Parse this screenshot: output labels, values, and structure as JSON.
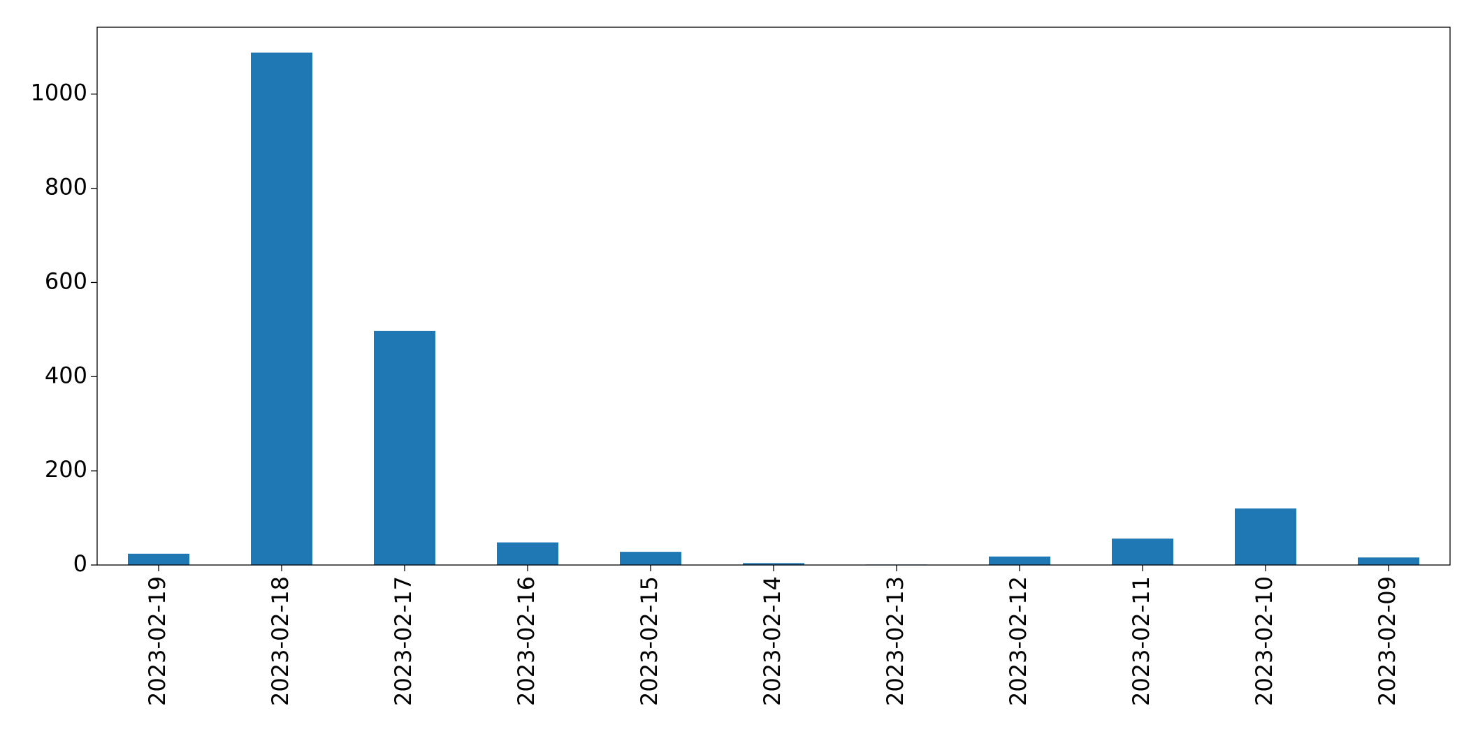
{
  "chart_data": {
    "type": "bar",
    "categories": [
      "2023-02-19",
      "2023-02-18",
      "2023-02-17",
      "2023-02-16",
      "2023-02-15",
      "2023-02-14",
      "2023-02-13",
      "2023-02-12",
      "2023-02-11",
      "2023-02-10",
      "2023-02-09"
    ],
    "values": [
      24,
      1088,
      497,
      48,
      28,
      4,
      1,
      18,
      56,
      120,
      16
    ],
    "color": "#1f77b4",
    "ylim": [
      0,
      1142
    ],
    "yticks": [
      0,
      200,
      400,
      600,
      800,
      1000
    ],
    "grid": false
  }
}
